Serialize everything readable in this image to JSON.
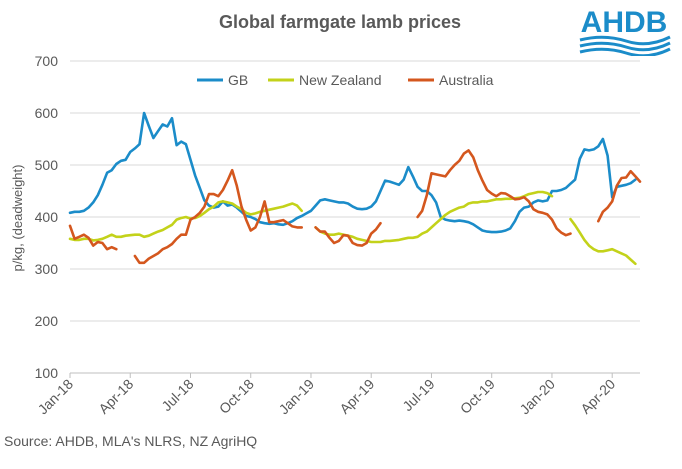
{
  "source": "Source: AHDB, MLA's NLRS, NZ AgriHQ",
  "logo_text": "AHDB",
  "colors": {
    "GB": "#1B8CC9",
    "New Zealand": "#C3D21A",
    "Australia": "#D4571E",
    "text": "#595959"
  },
  "chart_data": {
    "type": "line",
    "title": "Global farmgate lamb prices",
    "xlabel": "",
    "ylabel": "p/kg, (deadweight)",
    "ylim": [
      100,
      700
    ],
    "yticks": [
      100,
      200,
      300,
      400,
      500,
      600,
      700
    ],
    "xlim": [
      0,
      123
    ],
    "xticks": [
      {
        "x": 0,
        "label": "Jan-18"
      },
      {
        "x": 13,
        "label": "Apr-18"
      },
      {
        "x": 26,
        "label": "Jul-18"
      },
      {
        "x": 39,
        "label": "Oct-18"
      },
      {
        "x": 52,
        "label": "Jan-19"
      },
      {
        "x": 65,
        "label": "Apr-19"
      },
      {
        "x": 78,
        "label": "Jul-19"
      },
      {
        "x": 91,
        "label": "Oct-19"
      },
      {
        "x": 104,
        "label": "Jan-20"
      },
      {
        "x": 117,
        "label": "Apr-20"
      }
    ],
    "legend": "top",
    "grid": true,
    "series": [
      {
        "name": "GB",
        "values": [
          408,
          410,
          410,
          412,
          418,
          428,
          442,
          462,
          485,
          490,
          502,
          508,
          510,
          525,
          532,
          540,
          600,
          575,
          552,
          565,
          578,
          574,
          590,
          538,
          545,
          540,
          510,
          480,
          456,
          432,
          422,
          418,
          420,
          430,
          422,
          424,
          418,
          410,
          402,
          400,
          396,
          390,
          388,
          387,
          388,
          386,
          385,
          388,
          392,
          398,
          402,
          407,
          412,
          422,
          432,
          434,
          432,
          430,
          428,
          428,
          426,
          420,
          416,
          415,
          416,
          420,
          430,
          450,
          470,
          468,
          465,
          462,
          472,
          496,
          478,
          458,
          450,
          450,
          442,
          428,
          400,
          395,
          393,
          392,
          393,
          392,
          390,
          386,
          380,
          374,
          372,
          371,
          371,
          372,
          374,
          378,
          392,
          410,
          418,
          420,
          428,
          432,
          430,
          432,
          450,
          450,
          452,
          456,
          464,
          472,
          512,
          530,
          528,
          530,
          536,
          550,
          518,
          438,
          458,
          460,
          462,
          465,
          472
        ]
      },
      {
        "name": "New Zealand",
        "values": [
          358,
          356,
          356,
          358,
          358,
          355,
          356,
          358,
          362,
          366,
          362,
          362,
          364,
          365,
          366,
          366,
          362,
          364,
          368,
          372,
          375,
          380,
          385,
          395,
          398,
          400,
          397,
          398,
          402,
          408,
          415,
          420,
          428,
          430,
          428,
          426,
          420,
          415,
          408,
          405,
          407,
          410,
          412,
          414,
          416,
          418,
          420,
          423,
          426,
          422,
          412,
          null,
          null,
          380,
          372,
          368,
          366,
          366,
          368,
          366,
          364,
          362,
          358,
          356,
          354,
          352,
          352,
          352,
          354,
          354,
          355,
          356,
          358,
          360,
          360,
          362,
          368,
          372,
          380,
          388,
          396,
          404,
          410,
          414,
          418,
          420,
          426,
          428,
          428,
          430,
          430,
          432,
          434,
          434,
          435,
          435,
          436,
          437,
          440,
          444,
          446,
          448,
          448,
          446,
          440,
          null,
          null,
          null,
          396,
          384,
          370,
          356,
          345,
          338,
          334,
          334,
          336,
          338,
          334,
          330,
          326,
          318,
          310
        ]
      },
      {
        "name": "Australia",
        "values": [
          383,
          358,
          362,
          366,
          360,
          345,
          352,
          350,
          338,
          342,
          338,
          null,
          null,
          null,
          325,
          312,
          312,
          320,
          325,
          330,
          338,
          342,
          348,
          358,
          366,
          366,
          395,
          400,
          408,
          420,
          444,
          444,
          440,
          452,
          470,
          490,
          460,
          420,
          395,
          374,
          380,
          400,
          430,
          390,
          390,
          392,
          394,
          388,
          382,
          380,
          380,
          null,
          null,
          380,
          372,
          372,
          360,
          350,
          354,
          365,
          364,
          350,
          346,
          345,
          350,
          368,
          376,
          388,
          null,
          null,
          null,
          null,
          null,
          null,
          null,
          400,
          412,
          442,
          484,
          482,
          480,
          478,
          490,
          500,
          508,
          522,
          528,
          515,
          490,
          470,
          452,
          445,
          440,
          446,
          445,
          440,
          434,
          435,
          438,
          430,
          415,
          410,
          408,
          405,
          395,
          378,
          370,
          365,
          368,
          null,
          null,
          null,
          null,
          null,
          392,
          410,
          418,
          430,
          460,
          475,
          476,
          488,
          478,
          468
        ]
      }
    ]
  }
}
